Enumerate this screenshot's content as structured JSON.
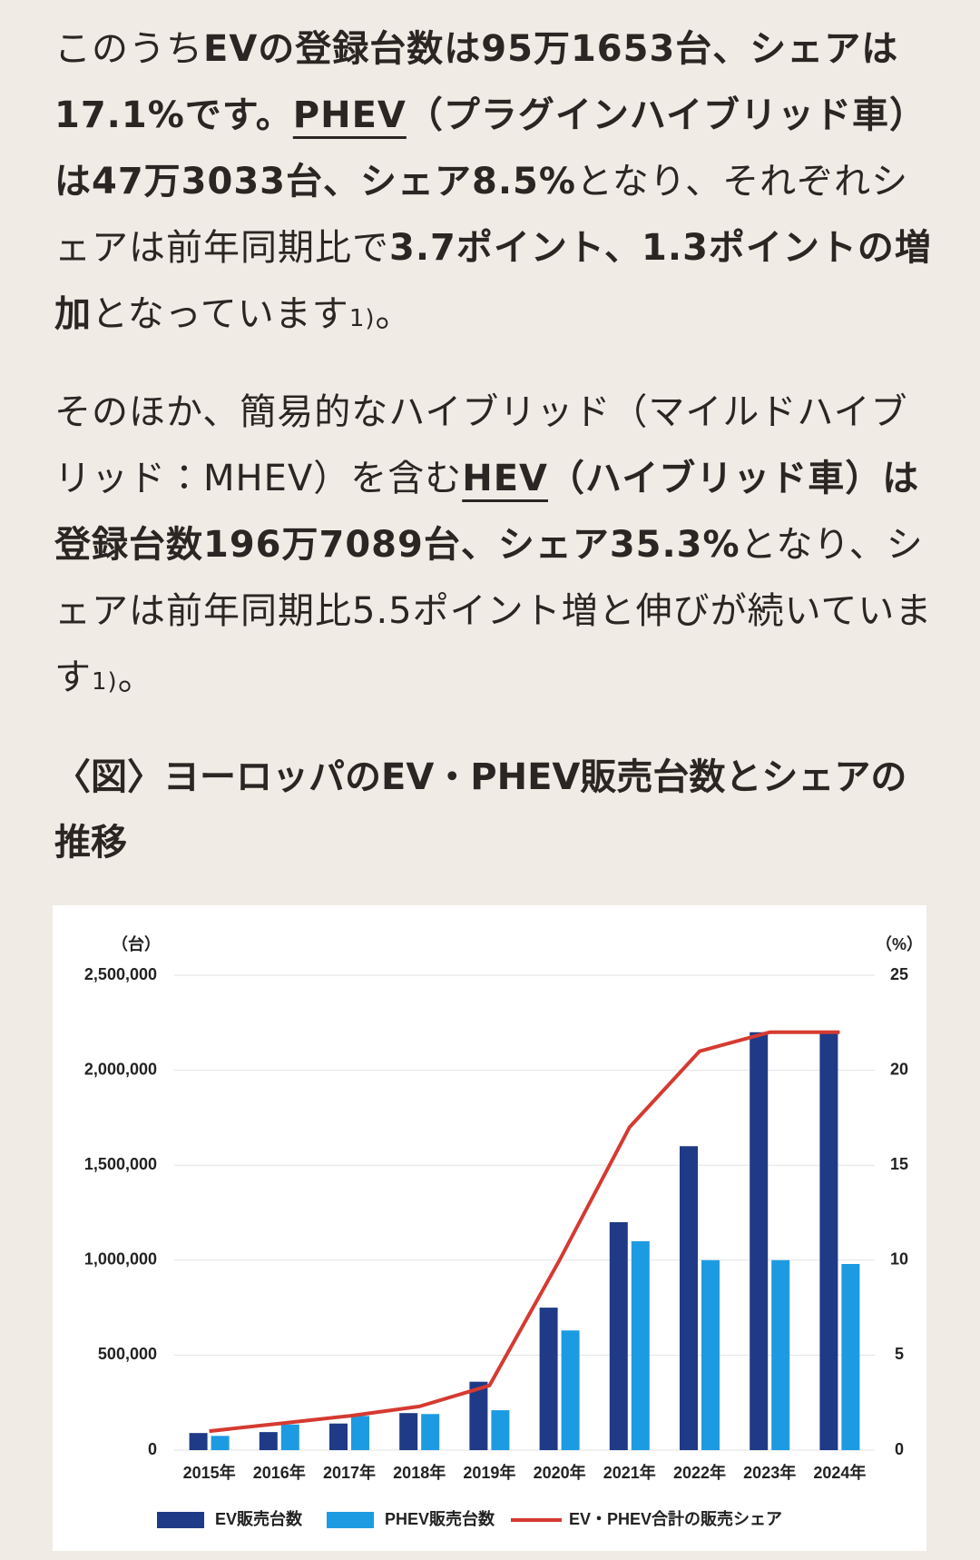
{
  "paragraphs": [
    [
      "このうち",
      "EVの登録台数は95万1653台、シェアは17.1%です。",
      "PHEV",
      "（プラグインハイブリッド車）は47万3033台、シェア8.5%",
      "となり、それぞれシェアは前年同期比で",
      "3.7ポイント、1.3ポイントの増加",
      "となっています",
      "1)",
      "。"
    ],
    [
      "そのほか、簡易的なハイブリッド（マイルドハイブリッド：MHEV）を含む",
      "HEV",
      "（ハイブリッド車）は登録台数196万7089台、シェア35.3%",
      "となり、シェアは前年同期比5.5ポイント増と伸びが続いています",
      "1)",
      "。"
    ]
  ],
  "heading": "〈図〉ヨーロッパのEV・PHEV販売台数とシェアの推移",
  "chart_data": {
    "type": "bar",
    "y_label": "（台）",
    "y2_label": "（%）",
    "categories": [
      "2015年",
      "2016年",
      "2017年",
      "2018年",
      "2019年",
      "2020年",
      "2021年",
      "2022年",
      "2023年",
      "2024年"
    ],
    "series": [
      {
        "name": "EV販売台数",
        "color": "#1f3a86",
        "values": [
          90000,
          95000,
          140000,
          195000,
          360000,
          750000,
          1200000,
          1600000,
          2200000,
          2200000
        ]
      },
      {
        "name": "PHEV販売台数",
        "color": "#1d9be2",
        "values": [
          75000,
          135000,
          180000,
          190000,
          210000,
          630000,
          1100000,
          1000000,
          1000000,
          980000
        ]
      },
      {
        "name": "EV・PHEV合計の販売シェア",
        "type": "line",
        "axis": "y2",
        "color": "#d53a31",
        "values": [
          1.0,
          1.4,
          1.8,
          2.3,
          3.4,
          10,
          17,
          21,
          22,
          22
        ]
      }
    ],
    "ylim": [
      0,
      2500000
    ],
    "yticks": [
      0,
      {
        "value": 500000,
        "label": "500,000"
      },
      {
        "value": 1000000,
        "label": "1,000,000"
      },
      {
        "value": 1500000,
        "label": "1,500,000"
      },
      {
        "value": 2000000,
        "label": "2,000,000"
      },
      {
        "value": 2500000,
        "label": "2,500,000"
      }
    ],
    "y2lim": [
      0,
      25
    ],
    "y2ticks": [
      0,
      5,
      10,
      15,
      20,
      25
    ],
    "grid": true
  }
}
